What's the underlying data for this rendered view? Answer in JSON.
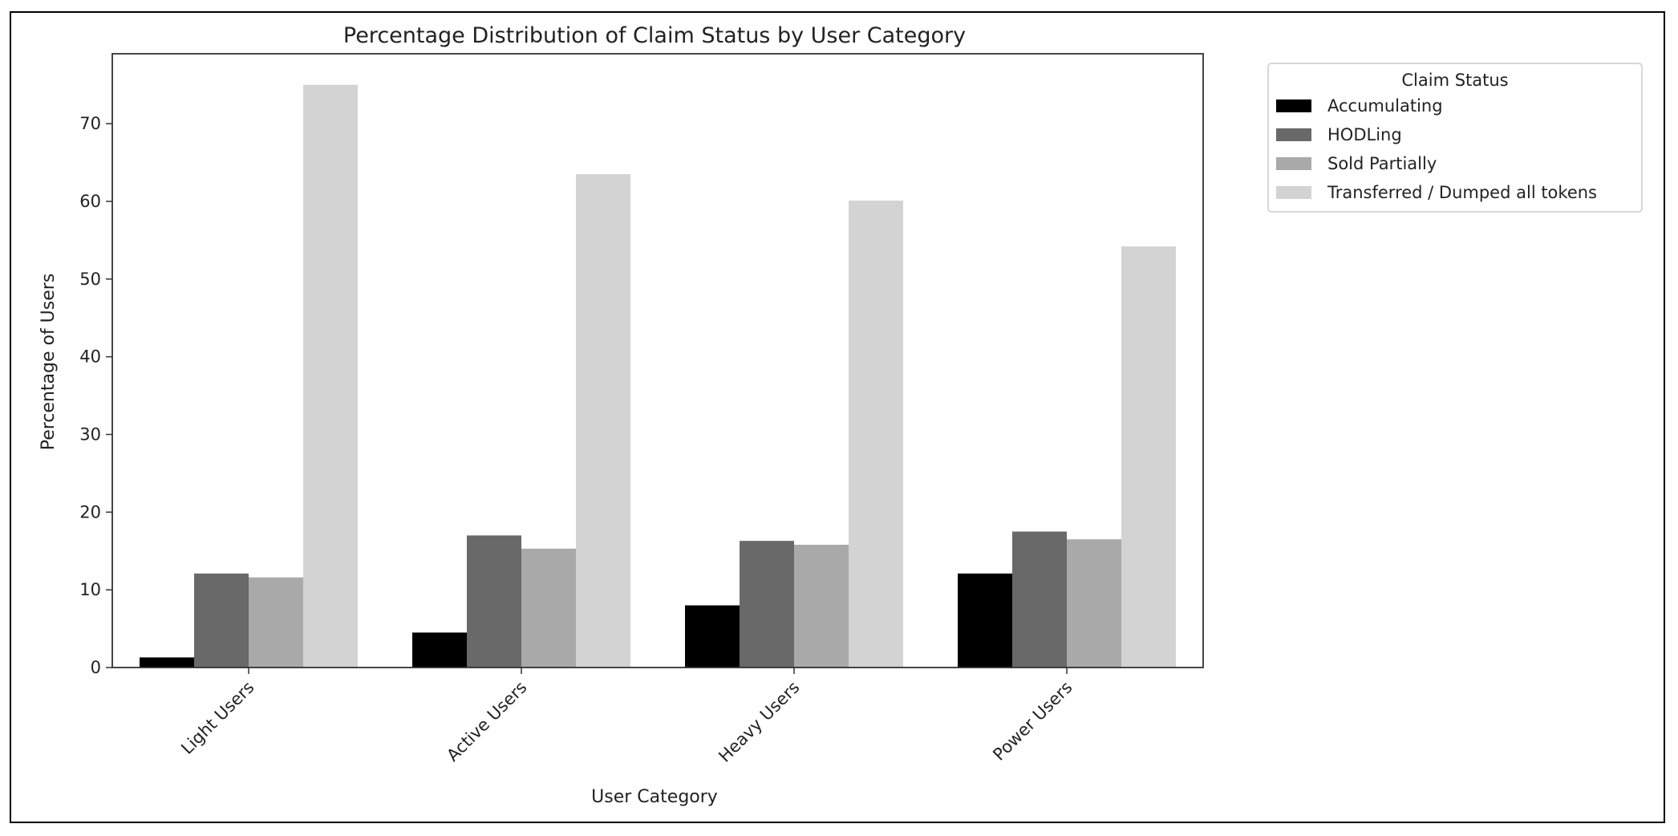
{
  "chart_data": {
    "type": "bar",
    "title": "Percentage Distribution of Claim Status by User Category",
    "xlabel": "User Category",
    "ylabel": "Percentage of Users",
    "categories": [
      "Light Users",
      "Active Users",
      "Heavy Users",
      "Power Users"
    ],
    "series": [
      {
        "name": "Accumulating",
        "values": [
          1.3,
          4.5,
          8.0,
          12.1
        ],
        "color": "#000000"
      },
      {
        "name": "HODLing",
        "values": [
          12.1,
          17.0,
          16.3,
          17.5
        ],
        "color": "#696969"
      },
      {
        "name": "Sold Partially",
        "values": [
          11.6,
          15.3,
          15.8,
          16.5
        ],
        "color": "#a9a9a9"
      },
      {
        "name": "Transferred / Dumped all tokens",
        "values": [
          75.0,
          63.5,
          60.1,
          54.2
        ],
        "color": "#d3d3d3"
      }
    ],
    "ylim": [
      0,
      79
    ],
    "yticks": [
      "0",
      "10",
      "20",
      "30",
      "40",
      "50",
      "60",
      "70"
    ],
    "legend": {
      "title": "Claim Status",
      "placement": "outside-top-right"
    },
    "grid": false
  }
}
